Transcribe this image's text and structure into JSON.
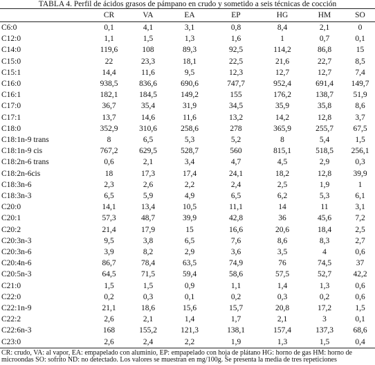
{
  "title": "TABLA 4. Perfil de ácidos grasos de pámpano en crudo y sometido a seis técnicas de cocción",
  "table": {
    "columns": [
      "CR",
      "VA",
      "EA",
      "EP",
      "HG",
      "HM",
      "SO"
    ],
    "rows": [
      [
        "C6:0",
        "0,1",
        "4,1",
        "3,1",
        "0,8",
        "8,4",
        "2,1",
        "0"
      ],
      [
        "C12:0",
        "1,1",
        "1,5",
        "1,3",
        "1,6",
        "1",
        "0,7",
        "0,1"
      ],
      [
        "C14:0",
        "119,6",
        "108",
        "89,3",
        "92,5",
        "114,2",
        "86,8",
        "15"
      ],
      [
        "C15:0",
        "22",
        "23,3",
        "18,1",
        "22,5",
        "21,6",
        "22,7",
        "8,5"
      ],
      [
        "C15:1",
        "14,4",
        "11,6",
        "9,5",
        "12,3",
        "12,7",
        "12,7",
        "7,4"
      ],
      [
        "C16:0",
        "938,5",
        "836,6",
        "690,6",
        "747,7",
        "952,4",
        "691,4",
        "149,7"
      ],
      [
        "C16:1",
        "182,1",
        "184,5",
        "149,2",
        "155",
        "176,2",
        "138,7",
        "51,9"
      ],
      [
        "C17:0",
        "36,7",
        "35,4",
        "31,9",
        "34,5",
        "35,9",
        "35,8",
        "8,6"
      ],
      [
        "C17:1",
        "13,7",
        "14,6",
        "11,6",
        "13,2",
        "14,2",
        "12,8",
        "3,7"
      ],
      [
        "C18:0",
        "352,9",
        "310,6",
        "258,6",
        "278",
        "365,9",
        "255,7",
        "67,5"
      ],
      [
        "C18:1n-9 trans",
        "8",
        "6,5",
        "5,3",
        "5,2",
        "8",
        "5,4",
        "1,5"
      ],
      [
        "C18:1n-9 cis",
        "767,2",
        "629,5",
        "528,7",
        "560",
        "815,1",
        "518,5",
        "256,1"
      ],
      [
        "C18:2n-6 trans",
        "0,6",
        "2,1",
        "3,4",
        "4,7",
        "4,5",
        "2,9",
        "0,3"
      ],
      [
        "C18:2n-6cis",
        "18",
        "17,3",
        "17,4",
        "24,1",
        "18,2",
        "12,8",
        "39,9"
      ],
      [
        "C18:3n-6",
        "2,3",
        "2,6",
        "2,2",
        "2,4",
        "2,5",
        "1,9",
        "1"
      ],
      [
        "C18:3n-3",
        "6,5",
        "5,9",
        "4,9",
        "6,5",
        "6,2",
        "5,3",
        "6,1"
      ],
      [
        "C20:0",
        "14,1",
        "13,4",
        "10,5",
        "11,1",
        "14",
        "11",
        "3,1"
      ],
      [
        "C20:1",
        "57,3",
        "48,7",
        "39,9",
        "42,8",
        "36",
        "45,6",
        "7,2"
      ],
      [
        "C20:2",
        "21,4",
        "17,9",
        "15",
        "16,6",
        "20,6",
        "18,4",
        "2,5"
      ],
      [
        "C20:3n-3",
        "9,5",
        "3,8",
        "6,5",
        "7,6",
        "8,6",
        "8,3",
        "2,7"
      ],
      [
        "C20:3n-6",
        "3,9",
        "8,2",
        "2,9",
        "3,6",
        "3,5",
        "4",
        "0,6"
      ],
      [
        "C20:4n-6",
        "86,7",
        "78,4",
        "63,5",
        "74,9",
        "76",
        "74,5",
        "37"
      ],
      [
        "C20:5n-3",
        "64,5",
        "71,5",
        "59,4",
        "58,6",
        "57,5",
        "52,7",
        "42,2"
      ],
      [
        "C21:0",
        "1,5",
        "1,5",
        "0,9",
        "1,1",
        "1,4",
        "1,3",
        "0,6"
      ],
      [
        "C22:0",
        "0,2",
        "0,3",
        "0,1",
        "0,2",
        "0,3",
        "0,2",
        "0,6"
      ],
      [
        "C22:1n-9",
        "21,1",
        "18,6",
        "15,6",
        "15,7",
        "20,8",
        "17,2",
        "1,5"
      ],
      [
        "C22:2",
        "2,6",
        "2,1",
        "1,4",
        "1,7",
        "2,1",
        "3",
        "0,1"
      ],
      [
        "C22:6n-3",
        "168",
        "155,2",
        "121,3",
        "138,1",
        "157,4",
        "137,3",
        "68,6"
      ],
      [
        "C23:0",
        "2,6",
        "2,4",
        "2,2",
        "1,9",
        "1,3",
        "1,5",
        "0,4"
      ]
    ]
  },
  "footnote": "CR: crudo, VA: al vapor, EA: empapelado con aluminio, EP: empapelado con hoja de plátano HG: horno de gas HM: horno de microondas SO: sofrito ND: no detectado. Los valores se muestran en mg/100g. Se presenta la media de tres repeticiones"
}
